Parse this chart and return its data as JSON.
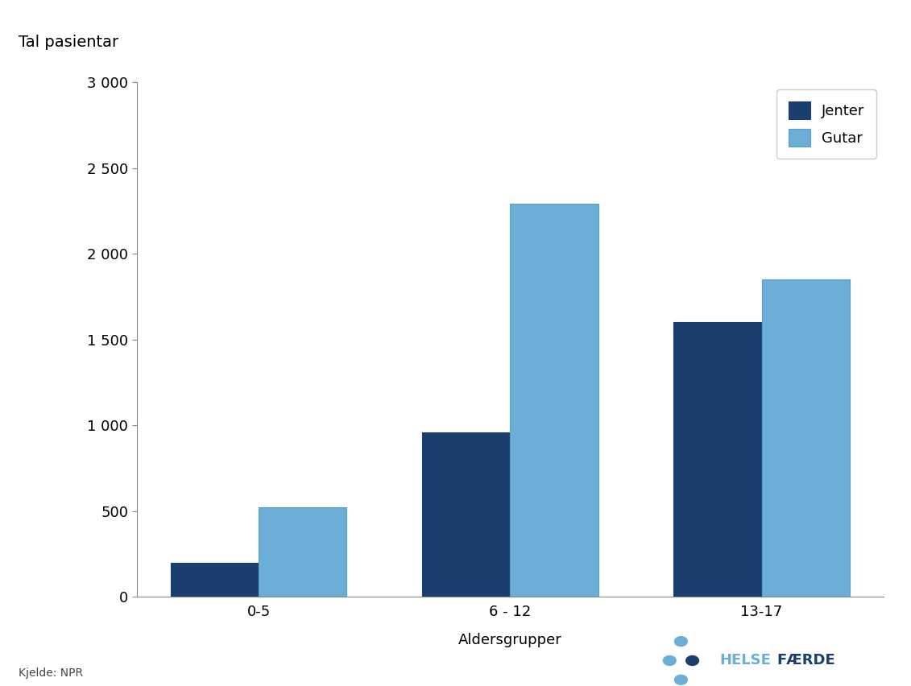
{
  "categories": [
    "0-5",
    "6 - 12",
    "13-17"
  ],
  "jenter_values": [
    200,
    960,
    1600
  ],
  "gutar_values": [
    520,
    2290,
    1850
  ],
  "jenter_color": "#1a3f6f",
  "gutar_color": "#6baed6",
  "ylabel": "Tal pasientar",
  "xlabel": "Aldersgrupper",
  "legend_labels": [
    "Jenter",
    "Gutar"
  ],
  "ylim": [
    0,
    3000
  ],
  "yticks": [
    0,
    500,
    1000,
    1500,
    2000,
    2500,
    3000
  ],
  "ytick_labels": [
    "0",
    "500",
    "1 000",
    "1 500",
    "2 000",
    "2 500",
    "3 000"
  ],
  "bar_width": 0.35,
  "source_text": "Kjelde: NPR",
  "logo_text_helse": "HELSE",
  "logo_text_forde": "ÆRDE",
  "background_color": "#ffffff"
}
